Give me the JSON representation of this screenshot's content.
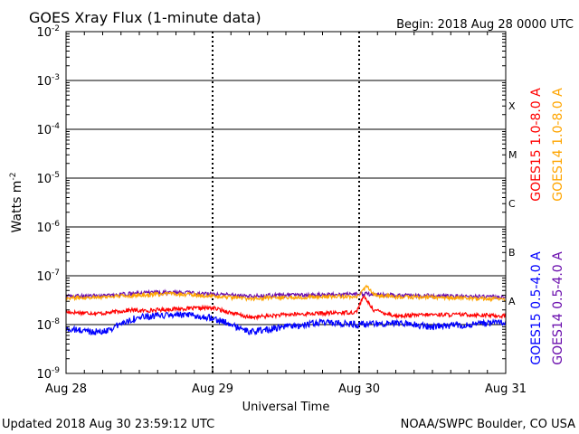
{
  "header": {
    "title": "GOES Xray Flux (1-minute data)",
    "begin": "Begin:  2018 Aug 28 0000 UTC"
  },
  "footer": {
    "updated": "Updated 2018 Aug 30 23:59:12 UTC",
    "credit": "NOAA/SWPC Boulder, CO USA"
  },
  "chart_data": {
    "type": "line",
    "title": "GOES Xray Flux (1-minute data)",
    "xlabel": "Universal Time",
    "ylabel": "Watts m",
    "ylabel_superscript": "-2",
    "yscale": "log",
    "ylim": [
      1e-09,
      0.01
    ],
    "y_ticks": [
      {
        "value": 1e-09,
        "base": "10",
        "exp": "-9"
      },
      {
        "value": 1e-08,
        "base": "10",
        "exp": "-8"
      },
      {
        "value": 1e-07,
        "base": "10",
        "exp": "-7"
      },
      {
        "value": 1e-06,
        "base": "10",
        "exp": "-6"
      },
      {
        "value": 1e-05,
        "base": "10",
        "exp": "-5"
      },
      {
        "value": 0.0001,
        "base": "10",
        "exp": "-4"
      },
      {
        "value": 0.001,
        "base": "10",
        "exp": "-3"
      },
      {
        "value": 0.01,
        "base": "10",
        "exp": "-2"
      }
    ],
    "x_ticks": [
      "Aug 28",
      "Aug 29",
      "Aug 30",
      "Aug 31"
    ],
    "flare_classes": [
      {
        "label": "A",
        "value": 1e-08
      },
      {
        "label": "B",
        "value": 1e-07
      },
      {
        "label": "C",
        "value": 1e-06
      },
      {
        "label": "M",
        "value": 1e-05
      },
      {
        "label": "X",
        "value": 0.0001
      }
    ],
    "legend_placement": "right",
    "series": [
      {
        "name": "GOES15 1.0-8.0 A",
        "color": "#ff0000",
        "x": [
          0,
          0.25,
          0.45,
          0.5,
          0.75,
          1.0,
          1.25,
          1.5,
          1.75,
          1.98,
          2.03,
          2.1,
          2.25,
          2.5,
          2.75,
          3.0
        ],
        "y": [
          1.8e-08,
          1.7e-08,
          2e-08,
          1.9e-08,
          2.1e-08,
          2.2e-08,
          1.4e-08,
          1.6e-08,
          1.7e-08,
          1.8e-08,
          3.8e-08,
          2e-08,
          1.5e-08,
          1.6e-08,
          1.6e-08,
          1.5e-08
        ]
      },
      {
        "name": "GOES14 1.0-8.0 A",
        "color": "#ffa500",
        "x": [
          0,
          0.25,
          0.5,
          0.75,
          1.0,
          1.25,
          1.5,
          1.75,
          2.0,
          2.05,
          2.1,
          2.25,
          2.5,
          2.75,
          3.0
        ],
        "y": [
          3.5e-08,
          3.7e-08,
          4e-08,
          4.3e-08,
          3.8e-08,
          3.4e-08,
          3.6e-08,
          3.7e-08,
          3.8e-08,
          6.5e-08,
          4e-08,
          3.7e-08,
          3.6e-08,
          3.5e-08,
          3.3e-08
        ]
      },
      {
        "name": "GOES15 0.5-4.0 A",
        "color": "#0000ff",
        "x": [
          0,
          0.25,
          0.45,
          0.5,
          0.75,
          1.0,
          1.25,
          1.5,
          1.75,
          2.0,
          2.25,
          2.5,
          2.75,
          3.0
        ],
        "y": [
          8e-09,
          7e-09,
          1.3e-08,
          1.4e-08,
          1.6e-08,
          1.4e-08,
          7e-09,
          9e-09,
          1.1e-08,
          1e-08,
          1.1e-08,
          9e-09,
          1e-08,
          1.1e-08
        ]
      },
      {
        "name": "GOES14 0.5-4.0 A",
        "color": "#6a0dad",
        "x": [
          0,
          0.25,
          0.5,
          0.75,
          1.0,
          1.25,
          1.5,
          1.75,
          2.0,
          2.25,
          2.5,
          2.75,
          3.0
        ],
        "y": [
          3.8e-08,
          3.9e-08,
          4.4e-08,
          4.6e-08,
          4.2e-08,
          3.9e-08,
          4e-08,
          4.1e-08,
          4.3e-08,
          4e-08,
          3.9e-08,
          3.8e-08,
          3.7e-08
        ]
      }
    ]
  }
}
